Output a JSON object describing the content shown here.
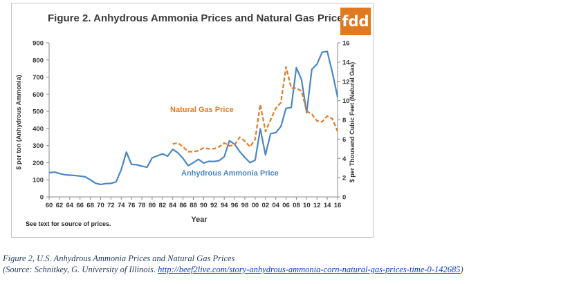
{
  "chart_data": {
    "type": "line",
    "title": "Figure 2.  Anhydrous Ammonia Prices and Natural Gas Prices",
    "xlabel": "Year",
    "ylabel_left": "$ per ton (Anhydrous Ammonia)",
    "ylabel_right": "$ per Thousand Cubic Feet (Natural Gas)",
    "y_left_lim": [
      0,
      900
    ],
    "y_left_ticks": [
      "0",
      "100",
      "200",
      "300",
      "400",
      "500",
      "600",
      "700",
      "800",
      "900"
    ],
    "y_right_lim": [
      0,
      16
    ],
    "y_right_ticks": [
      "0",
      "2",
      "4",
      "6",
      "8",
      "10",
      "12",
      "14",
      "16"
    ],
    "x_lim": [
      1960,
      2016
    ],
    "x_ticks": [
      "60",
      "62",
      "64",
      "66",
      "68",
      "70",
      "72",
      "74",
      "76",
      "78",
      "80",
      "82",
      "84",
      "86",
      "88",
      "90",
      "92",
      "94",
      "96",
      "98",
      "00",
      "02",
      "04",
      "06",
      "08",
      "10",
      "12",
      "14",
      "16"
    ],
    "grid": false,
    "note": "See text for source of prices.",
    "series": [
      {
        "name": "Anhydrous  Ammonia Price",
        "axis": "left",
        "color": "#4a86c5",
        "style": "solid",
        "x": [
          1960,
          1961,
          1962,
          1963,
          1964,
          1965,
          1966,
          1967,
          1968,
          1969,
          1970,
          1971,
          1972,
          1973,
          1974,
          1975,
          1976,
          1977,
          1978,
          1979,
          1980,
          1981,
          1982,
          1983,
          1984,
          1985,
          1986,
          1987,
          1988,
          1989,
          1990,
          1991,
          1992,
          1993,
          1994,
          1995,
          1996,
          1997,
          1998,
          1999,
          2000,
          2001,
          2002,
          2003,
          2004,
          2005,
          2006,
          2007,
          2008,
          2009,
          2010,
          2011,
          2012,
          2013,
          2014,
          2015,
          2016
        ],
        "y": [
          142,
          145,
          137,
          130,
          127,
          125,
          122,
          118,
          100,
          80,
          73,
          78,
          79,
          88,
          160,
          262,
          190,
          188,
          180,
          173,
          228,
          240,
          252,
          238,
          278,
          258,
          225,
          183,
          200,
          220,
          198,
          208,
          207,
          212,
          235,
          328,
          308,
          265,
          230,
          200,
          215,
          398,
          245,
          370,
          375,
          412,
          518,
          522,
          755,
          685,
          492,
          745,
          775,
          845,
          850,
          725,
          583
        ]
      },
      {
        "name": "Natural Gas Price",
        "axis": "right",
        "color": "#e07b2a",
        "style": "dashed",
        "x": [
          1984,
          1985,
          1986,
          1987,
          1988,
          1989,
          1990,
          1991,
          1992,
          1993,
          1994,
          1995,
          1996,
          1997,
          1998,
          1999,
          2000,
          2001,
          2002,
          2003,
          2004,
          2005,
          2006,
          2007,
          2008,
          2009,
          2010,
          2011,
          2012,
          2013,
          2014,
          2015,
          2016
        ],
        "y": [
          5.5,
          5.6,
          5.2,
          4.7,
          4.7,
          4.8,
          5.1,
          5.0,
          5.0,
          5.2,
          5.6,
          5.3,
          5.4,
          6.2,
          5.8,
          5.2,
          6.0,
          9.6,
          6.8,
          8.0,
          9.2,
          9.8,
          13.5,
          11.3,
          11.3,
          11.0,
          8.9,
          8.6,
          7.9,
          7.8,
          8.4,
          8.1,
          6.8
        ]
      }
    ]
  },
  "logo_text": "fdd",
  "caption": {
    "line1": "Figure 2, U.S. Anhydrous Ammonia Prices and Natural Gas Prices",
    "line2_prefix": "(Source: Schnitkey, G. University of Illinois. ",
    "link": "http://beef2live.com/story-anhydrous-ammonia-corn-natural-gas-prices-time-0-142685",
    "line2_suffix": ")"
  }
}
